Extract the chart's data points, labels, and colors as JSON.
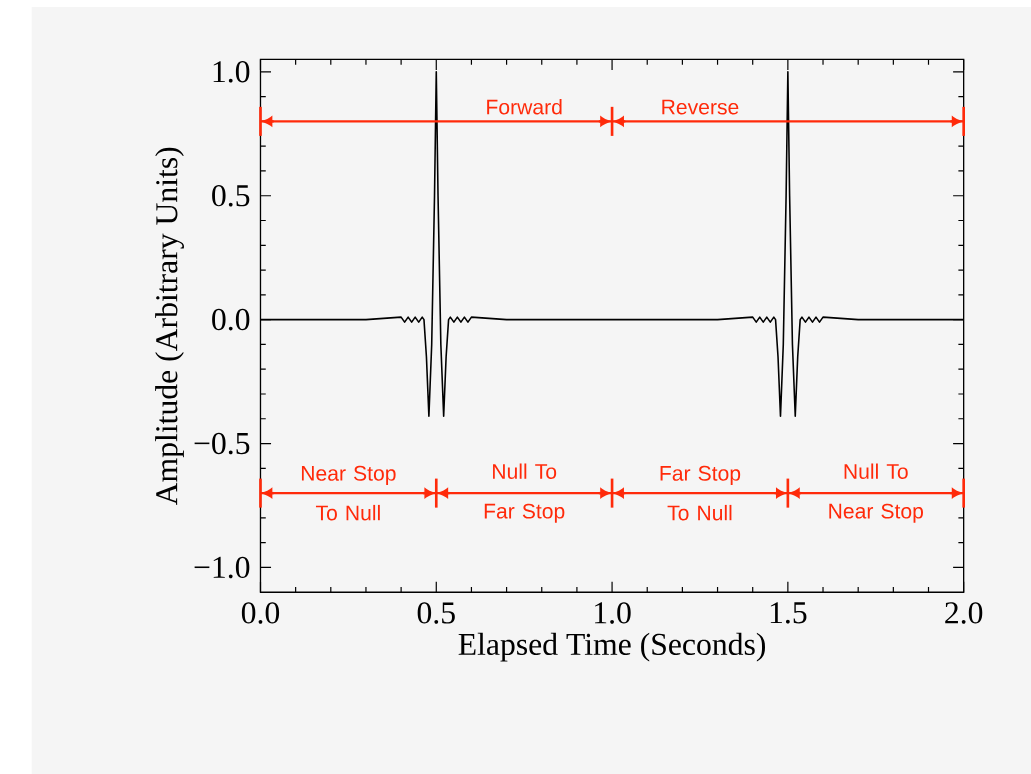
{
  "chart_data": {
    "type": "line",
    "xlabel": "Elapsed Time (Seconds)",
    "ylabel": "Amplitude (Arbitrary Units)",
    "xlim": [
      0,
      2
    ],
    "ylim": [
      -1.1,
      1.05
    ],
    "xticks": [
      {
        "value": 0,
        "label": "0.0"
      },
      {
        "value": 0.5,
        "label": "0.5"
      },
      {
        "value": 1,
        "label": "1.0"
      },
      {
        "value": 1.5,
        "label": "1.5"
      },
      {
        "value": 2,
        "label": "2.0"
      }
    ],
    "yticks": [
      {
        "value": -1,
        "label": "−1.0"
      },
      {
        "value": -0.5,
        "label": "−0.5"
      },
      {
        "value": 0,
        "label": "0.0"
      },
      {
        "value": 0.5,
        "label": "0.5"
      },
      {
        "value": 1,
        "label": "1.0"
      }
    ],
    "series": [
      {
        "color": "#000000",
        "x": [
          0,
          0.3,
          0.4,
          0.41,
          0.42,
          0.43,
          0.44,
          0.45,
          0.46,
          0.465,
          0.472,
          0.479,
          0.487,
          0.495,
          0.5,
          0.505,
          0.513,
          0.521,
          0.528,
          0.535,
          0.54,
          0.55,
          0.56,
          0.57,
          0.58,
          0.59,
          0.6,
          0.7,
          1.3,
          1.4,
          1.41,
          1.42,
          1.43,
          1.44,
          1.45,
          1.46,
          1.465,
          1.472,
          1.479,
          1.487,
          1.495,
          1.5,
          1.505,
          1.513,
          1.521,
          1.528,
          1.535,
          1.54,
          1.55,
          1.56,
          1.57,
          1.58,
          1.59,
          1.6,
          1.7,
          2
        ],
        "values": [
          0,
          0,
          0.01,
          -0.01,
          0.01,
          -0.01,
          0.01,
          -0.01,
          0.01,
          0,
          -0.15,
          -0.39,
          -0.1,
          0.5,
          1.0,
          0.5,
          -0.1,
          -0.39,
          -0.15,
          0,
          0.01,
          -0.01,
          0.01,
          -0.01,
          0.01,
          -0.01,
          0.01,
          0,
          0,
          0.01,
          -0.01,
          0.01,
          -0.01,
          0.01,
          -0.01,
          0.01,
          0,
          -0.15,
          -0.39,
          -0.1,
          0.5,
          1.0,
          0.5,
          -0.1,
          -0.39,
          -0.15,
          0,
          0.01,
          -0.01,
          0.01,
          -0.01,
          0.01,
          -0.01,
          0.01,
          0,
          0
        ]
      },
      {
        "color": "#ff2a0a",
        "x": [
          0,
          1,
          2
        ],
        "values": [
          0.8,
          0.8,
          0.8
        ]
      },
      {
        "color": "#ff2a0a",
        "x": [
          0,
          0.5,
          1,
          1.5,
          2
        ],
        "values": [
          -0.7,
          -0.7,
          -0.7,
          -0.7,
          -0.7
        ]
      }
    ],
    "annotations": [
      {
        "text": "Forward",
        "x": 0.75,
        "y": 0.8
      },
      {
        "text": "Reverse",
        "x": 1.25,
        "y": 0.8
      },
      {
        "text": "Near Stop To Null",
        "x": 0.25,
        "y": -0.7
      },
      {
        "text": "Null To Far Stop",
        "x": 0.75,
        "y": -0.7
      },
      {
        "text": "Far Stop To Null",
        "x": 1.25,
        "y": -0.7
      },
      {
        "text": "Null To Near Stop",
        "x": 1.75,
        "y": -0.7
      }
    ]
  }
}
